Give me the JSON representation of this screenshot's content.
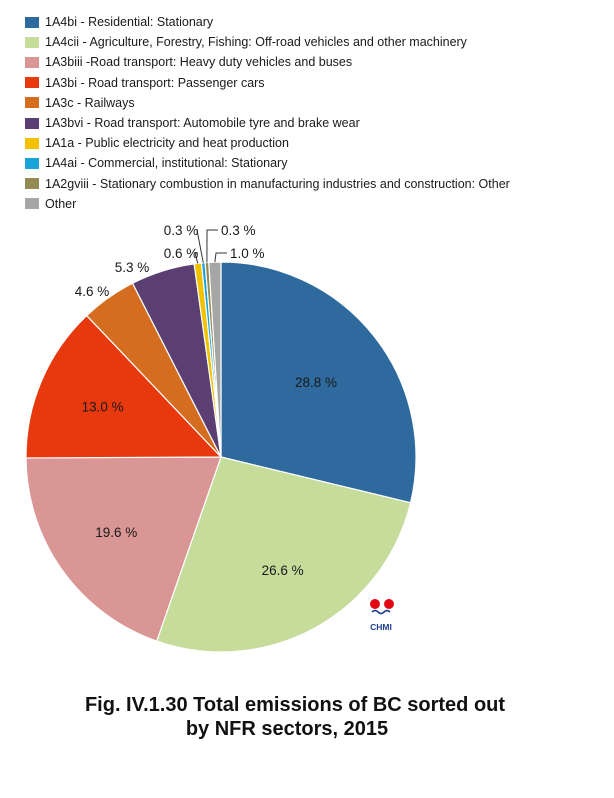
{
  "chart_data": {
    "type": "pie",
    "legend_position": "top",
    "slices": [
      {
        "code": "1A4bi",
        "legend": "1A4bi - Residential: Stationary",
        "value": 28.8,
        "label": "28.8 %",
        "color": "#2e6a9e"
      },
      {
        "code": "1A4cii",
        "legend": "1A4cii -  Agriculture, Forestry, Fishing: Off-road vehicles and other machinery",
        "value": 26.6,
        "label": "26.6 %",
        "color": "#c5dc9a"
      },
      {
        "code": "1A3biii",
        "legend": "1A3biii -Road transport: Heavy duty vehicles and buses",
        "value": 19.6,
        "label": "19.6 %",
        "color": "#d99694"
      },
      {
        "code": "1A3bi",
        "legend": "1A3bi - Road transport: Passenger cars",
        "value": 13.0,
        "label": "13.0 %",
        "color": "#e8380d"
      },
      {
        "code": "1A3c",
        "legend": "1A3c - Railways",
        "value": 4.6,
        "label": "4.6 %",
        "color": "#d46d1f"
      },
      {
        "code": "1A3bvi",
        "legend": "1A3bvi - Road transport: Automobile tyre and brake wear",
        "value": 5.3,
        "label": "5.3 %",
        "color": "#5b3f72"
      },
      {
        "code": "1A1a",
        "legend": "1A1a - Public electricity and heat production",
        "value": 0.6,
        "label": "0.6 %",
        "color": "#f2c200"
      },
      {
        "code": "1A4ai",
        "legend": "1A4ai - Commercial, institutional: Stationary",
        "value": 0.3,
        "label": "0.3 %",
        "color": "#1aa3d9"
      },
      {
        "code": "1A2gviii",
        "legend": "1A2gviii - Stationary combustion in manufacturing industries and construction: Other",
        "value": 0.3,
        "label": "0.3 %",
        "color": "#948a54"
      },
      {
        "code": "Other",
        "legend": "Other",
        "value": 1.0,
        "label": "1.0 %",
        "color": "#a6a6a6"
      }
    ]
  },
  "logo": {
    "text": "CHMI",
    "color": "#e30613",
    "text_color": "#1f3d8f"
  },
  "caption": {
    "line1": "Fig. IV.1.30  Total emissions of BC sorted out",
    "line2": "by NFR sectors, 2015"
  }
}
